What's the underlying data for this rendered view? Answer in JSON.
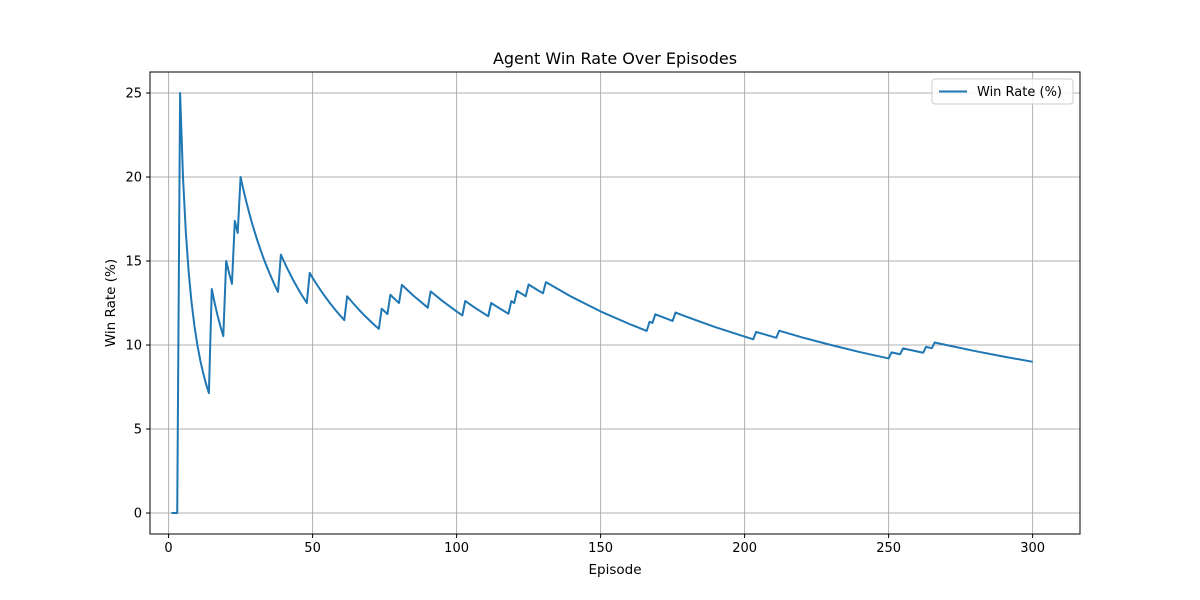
{
  "chart_data": {
    "type": "line",
    "title": "Agent Win Rate Over Episodes",
    "xlabel": "Episode",
    "ylabel": "Win Rate (%)",
    "xlim": [
      -6.45,
      316.45
    ],
    "ylim": [
      -1.25,
      26.25
    ],
    "xticks": [
      0,
      50,
      100,
      150,
      200,
      250,
      300
    ],
    "yticks": [
      0,
      5,
      10,
      15,
      20,
      25
    ],
    "grid": true,
    "legend_position": "top-right",
    "series": [
      {
        "name": "Win Rate (%)",
        "color": "#1f77b4",
        "x": [
          1,
          2,
          3,
          4,
          5,
          6,
          7,
          8,
          9,
          10,
          11,
          12,
          13,
          14,
          15,
          16,
          17,
          18,
          19,
          20,
          21,
          22,
          23,
          24,
          25,
          26,
          27,
          28,
          29,
          30,
          31,
          32,
          33,
          34,
          35,
          36,
          37,
          38,
          39,
          40,
          41,
          42,
          43,
          44,
          45,
          46,
          47,
          48,
          49,
          50,
          52,
          54,
          56,
          58,
          60,
          61,
          62,
          64,
          66,
          68,
          70,
          72,
          73,
          74,
          75,
          76,
          77,
          78,
          79,
          80,
          81,
          85,
          90,
          91,
          95,
          100,
          102,
          103,
          106,
          110,
          111,
          112,
          114,
          116,
          118,
          119,
          120,
          121,
          122,
          123,
          124,
          125,
          128,
          130,
          131,
          140,
          150,
          160,
          166,
          167,
          168,
          169,
          170,
          175,
          176,
          180,
          190,
          200,
          203,
          204,
          210,
          211,
          212,
          220,
          230,
          240,
          250,
          251,
          254,
          255,
          262,
          263,
          265,
          266,
          270,
          280,
          290,
          300
        ],
        "values": [
          0,
          0,
          0,
          25,
          20.0,
          16.67,
          14.29,
          12.5,
          11.11,
          10.0,
          9.09,
          8.33,
          7.69,
          7.14,
          13.33,
          12.5,
          11.76,
          11.11,
          10.53,
          15.0,
          14.29,
          13.64,
          17.39,
          16.67,
          20.0,
          19.23,
          18.52,
          17.86,
          17.24,
          16.67,
          16.13,
          15.63,
          15.15,
          14.71,
          14.29,
          13.89,
          13.51,
          13.16,
          15.38,
          15.0,
          14.63,
          14.29,
          13.95,
          13.64,
          13.33,
          13.04,
          12.77,
          12.5,
          14.29,
          14.0,
          13.46,
          12.96,
          12.5,
          12.07,
          11.67,
          11.48,
          12.9,
          12.5,
          12.12,
          11.76,
          11.43,
          11.11,
          10.96,
          12.16,
          12.0,
          11.84,
          12.99,
          12.82,
          12.66,
          12.5,
          13.58,
          12.94,
          12.22,
          13.19,
          12.63,
          12.0,
          11.76,
          12.62,
          12.26,
          11.82,
          11.71,
          12.5,
          12.28,
          12.07,
          11.86,
          12.61,
          12.5,
          13.22,
          13.11,
          13.01,
          12.9,
          13.6,
          13.28,
          13.08,
          13.74,
          12.86,
          12.0,
          11.25,
          10.84,
          11.38,
          11.31,
          11.83,
          11.76,
          11.43,
          11.93,
          11.67,
          11.05,
          10.5,
          10.34,
          10.78,
          10.48,
          10.43,
          10.85,
          10.45,
          10.0,
          9.58,
          9.2,
          9.56,
          9.45,
          9.8,
          9.54,
          9.89,
          9.81,
          10.15,
          10.0,
          9.64,
          9.31,
          9.0
        ]
      }
    ]
  }
}
